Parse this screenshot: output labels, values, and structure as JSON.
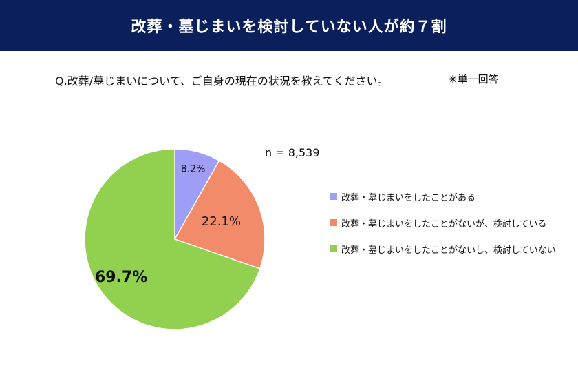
{
  "header": {
    "title": "改葬・墓じまいを検討していない人が約７割"
  },
  "question": "Q.改葬/墓じまいについて、ご自身の現在の状況を教えてください。",
  "note": "※単一回答",
  "sample": "n = 8,539",
  "chart_data": {
    "type": "pie",
    "title": "",
    "categories": [
      "改葬・墓じまいをしたことがある",
      "改葬・墓じまいをしたことがないが、検討している",
      "改葬・墓じまいをしたことがないし、検討していない"
    ],
    "values": [
      8.2,
      22.1,
      69.7
    ],
    "labels": [
      "8.2%",
      "22.1%",
      "69.7%"
    ],
    "colors": [
      "#9e9ef7",
      "#f28b6a",
      "#92d050"
    ],
    "start": "12 o'clock",
    "direction": "clockwise",
    "legend": "right"
  }
}
